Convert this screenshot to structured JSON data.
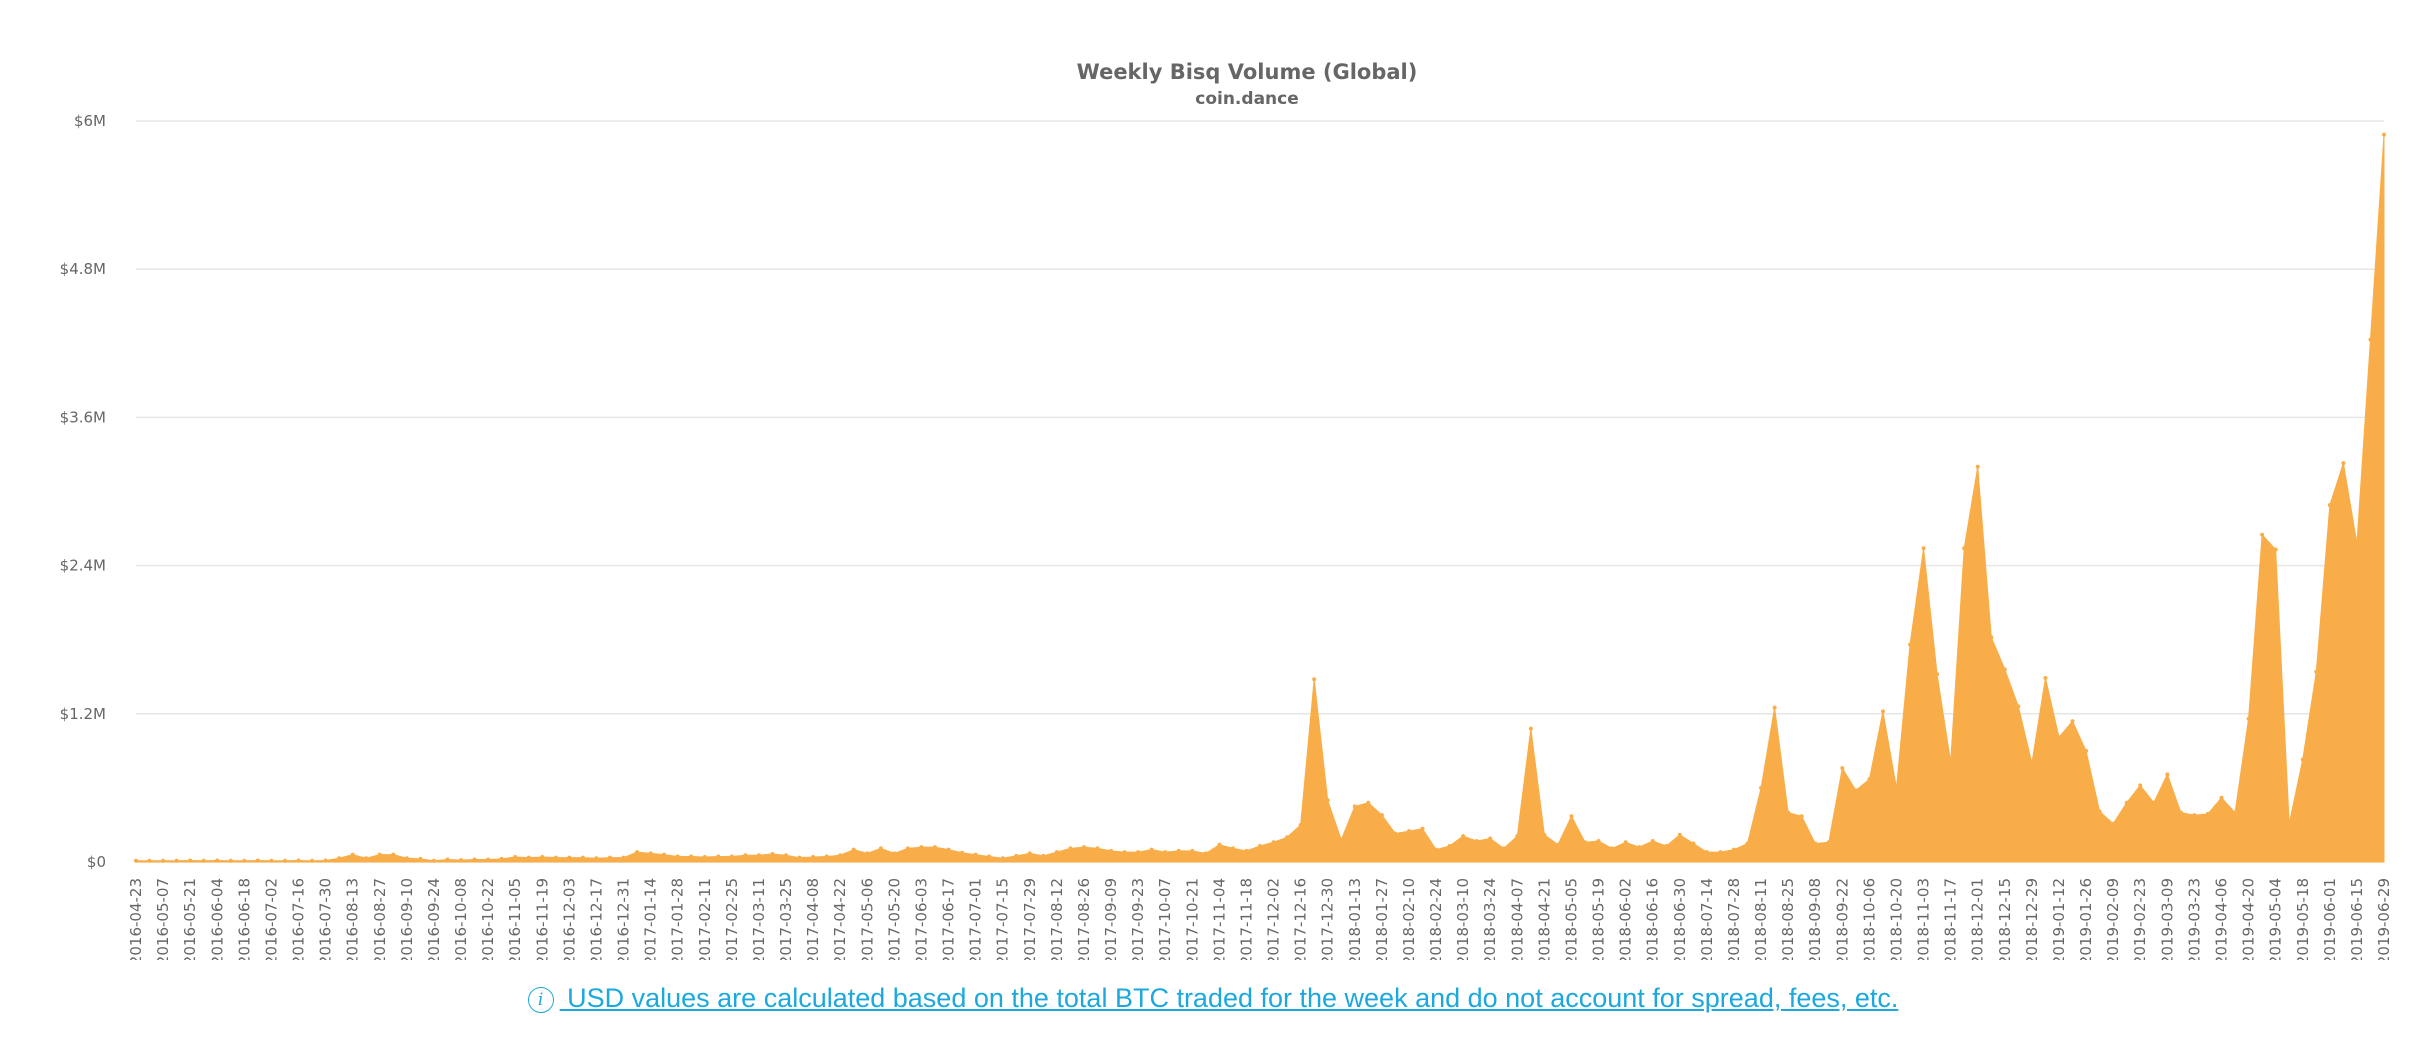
{
  "chart_data": {
    "type": "area",
    "title": "Weekly Bisq Volume (Global)",
    "subtitle": "coin.dance",
    "xlabel": "",
    "ylabel": "",
    "ylim": [
      0,
      6000000
    ],
    "yticks": [
      0,
      1200000,
      2400000,
      3600000,
      4800000,
      6000000
    ],
    "ytick_labels": [
      "$0",
      "$1.2M",
      "$2.4M",
      "$3.6M",
      "$4.8M",
      "$6M"
    ],
    "grid": true,
    "legend": "none",
    "color": "#f9ad48",
    "x": [
      "2016-04-23",
      "2016-04-30",
      "2016-05-07",
      "2016-05-14",
      "2016-05-21",
      "2016-05-28",
      "2016-06-04",
      "2016-06-11",
      "2016-06-18",
      "2016-06-25",
      "2016-07-02",
      "2016-07-09",
      "2016-07-16",
      "2016-07-23",
      "2016-07-30",
      "2016-08-06",
      "2016-08-13",
      "2016-08-20",
      "2016-08-27",
      "2016-09-03",
      "2016-09-10",
      "2016-09-17",
      "2016-09-24",
      "2016-10-01",
      "2016-10-08",
      "2016-10-15",
      "2016-10-22",
      "2016-10-29",
      "2016-11-05",
      "2016-11-12",
      "2016-11-19",
      "2016-11-26",
      "2016-12-03",
      "2016-12-10",
      "2016-12-17",
      "2016-12-24",
      "2016-12-31",
      "2017-01-07",
      "2017-01-14",
      "2017-01-21",
      "2017-01-28",
      "2017-02-04",
      "2017-02-11",
      "2017-02-18",
      "2017-02-25",
      "2017-03-04",
      "2017-03-11",
      "2017-03-18",
      "2017-03-25",
      "2017-04-01",
      "2017-04-08",
      "2017-04-15",
      "2017-04-22",
      "2017-04-29",
      "2017-05-06",
      "2017-05-13",
      "2017-05-20",
      "2017-05-27",
      "2017-06-03",
      "2017-06-10",
      "2017-06-17",
      "2017-06-24",
      "2017-07-01",
      "2017-07-08",
      "2017-07-15",
      "2017-07-22",
      "2017-07-29",
      "2017-08-05",
      "2017-08-12",
      "2017-08-19",
      "2017-08-26",
      "2017-09-02",
      "2017-09-09",
      "2017-09-16",
      "2017-09-23",
      "2017-09-30",
      "2017-10-07",
      "2017-10-14",
      "2017-10-21",
      "2017-10-28",
      "2017-11-04",
      "2017-11-11",
      "2017-11-18",
      "2017-11-25",
      "2017-12-02",
      "2017-12-09",
      "2017-12-16",
      "2017-12-23",
      "2017-12-30",
      "2018-01-06",
      "2018-01-13",
      "2018-01-20",
      "2018-01-27",
      "2018-02-03",
      "2018-02-10",
      "2018-02-17",
      "2018-02-24",
      "2018-03-03",
      "2018-03-10",
      "2018-03-17",
      "2018-03-24",
      "2018-03-31",
      "2018-04-07",
      "2018-04-14",
      "2018-04-21",
      "2018-04-28",
      "2018-05-05",
      "2018-05-12",
      "2018-05-19",
      "2018-05-26",
      "2018-06-02",
      "2018-06-09",
      "2018-06-16",
      "2018-06-23",
      "2018-06-30",
      "2018-07-07",
      "2018-07-14",
      "2018-07-21",
      "2018-07-28",
      "2018-08-04",
      "2018-08-11",
      "2018-08-18",
      "2018-08-25",
      "2018-09-01",
      "2018-09-08",
      "2018-09-15",
      "2018-09-22",
      "2018-09-29",
      "2018-10-06",
      "2018-10-13",
      "2018-10-20",
      "2018-10-27",
      "2018-11-03",
      "2018-11-10",
      "2018-11-17",
      "2018-11-24",
      "2018-12-01",
      "2018-12-08",
      "2018-12-15",
      "2018-12-22",
      "2018-12-29",
      "2019-01-05",
      "2019-01-12",
      "2019-01-19",
      "2019-01-26",
      "2019-02-02",
      "2019-02-09",
      "2019-02-16",
      "2019-02-23",
      "2019-03-02",
      "2019-03-09",
      "2019-03-16",
      "2019-03-23",
      "2019-03-30",
      "2019-04-06",
      "2019-04-13",
      "2019-04-20",
      "2019-04-27",
      "2019-05-04",
      "2019-05-11",
      "2019-05-18",
      "2019-05-25",
      "2019-06-01",
      "2019-06-08",
      "2019-06-15",
      "2019-06-22",
      "2019-06-29"
    ],
    "values": [
      10000,
      10000,
      10000,
      10000,
      12000,
      10000,
      12000,
      10000,
      10000,
      12000,
      10000,
      10000,
      12000,
      10000,
      12000,
      30000,
      60000,
      30000,
      60000,
      60000,
      30000,
      25000,
      10000,
      20000,
      15000,
      20000,
      20000,
      25000,
      40000,
      35000,
      40000,
      35000,
      35000,
      35000,
      30000,
      35000,
      35000,
      80000,
      70000,
      60000,
      45000,
      45000,
      40000,
      45000,
      45000,
      55000,
      55000,
      65000,
      55000,
      35000,
      40000,
      45000,
      55000,
      100000,
      70000,
      110000,
      70000,
      110000,
      120000,
      120000,
      100000,
      75000,
      60000,
      45000,
      30000,
      50000,
      70000,
      50000,
      80000,
      110000,
      120000,
      110000,
      90000,
      80000,
      80000,
      100000,
      80000,
      90000,
      90000,
      70000,
      140000,
      110000,
      90000,
      130000,
      160000,
      200000,
      300000,
      1480000,
      500000,
      180000,
      450000,
      480000,
      380000,
      230000,
      250000,
      270000,
      100000,
      130000,
      210000,
      170000,
      190000,
      110000,
      210000,
      1080000,
      220000,
      140000,
      370000,
      160000,
      170000,
      110000,
      160000,
      120000,
      170000,
      130000,
      220000,
      150000,
      80000,
      80000,
      100000,
      150000,
      600000,
      1250000,
      400000,
      370000,
      150000,
      160000,
      760000,
      580000,
      670000,
      1220000,
      600000,
      1760000,
      2540000,
      1520000,
      810000,
      2540000,
      3200000,
      1820000,
      1560000,
      1260000,
      800000,
      1490000,
      1010000,
      1140000,
      900000,
      410000,
      310000,
      480000,
      620000,
      480000,
      710000,
      400000,
      380000,
      390000,
      520000,
      400000,
      1160000,
      2650000,
      2530000,
      310000,
      830000,
      1540000,
      2890000,
      3230000,
      2580000,
      4230000,
      5890000
    ]
  },
  "footnote": {
    "icon": "info-icon",
    "text": " USD values are calculated based on the total BTC traded for the week and do not account for spread, fees, etc."
  }
}
